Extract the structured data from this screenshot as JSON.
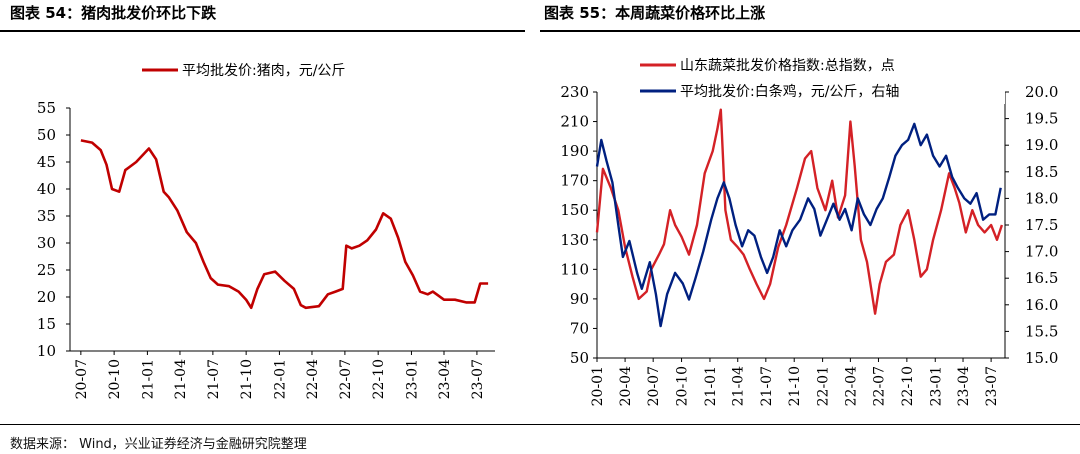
{
  "panels": [
    {
      "title": "图表 54：猪肉批发价环比下跌"
    },
    {
      "title": "图表 55：本周蔬菜价格环比上涨"
    }
  ],
  "source": "数据来源：  Wind，兴业证券经济与金融研究院整理",
  "colors": {
    "red": "#d42126",
    "darkred": "#c00000",
    "navy": "#002080"
  },
  "chart_data": [
    {
      "type": "line",
      "title": "图表 54：猪肉批发价环比下跌",
      "ylim": [
        10,
        55
      ],
      "yticks": [
        "10",
        "15",
        "20",
        "25",
        "30",
        "35",
        "40",
        "45",
        "50",
        "55"
      ],
      "xticks": [
        "20-07",
        "20-10",
        "21-01",
        "21-04",
        "21-07",
        "21-10",
        "22-01",
        "22-04",
        "22-07",
        "22-10",
        "23-01",
        "23-04",
        "23-07"
      ],
      "legend_position": "top-center",
      "series": [
        {
          "name": "平均批发价:猪肉，元/公斤",
          "color": "#c00000",
          "points": [
            [
              "2020-07-01",
              49.0
            ],
            [
              "2020-08-01",
              48.6
            ],
            [
              "2020-08-25",
              47.2
            ],
            [
              "2020-09-10",
              44.5
            ],
            [
              "2020-09-25",
              40.0
            ],
            [
              "2020-10-15",
              39.5
            ],
            [
              "2020-11-01",
              43.5
            ],
            [
              "2020-12-01",
              45.0
            ],
            [
              "2021-01-05",
              47.5
            ],
            [
              "2021-01-25",
              45.5
            ],
            [
              "2021-02-15",
              39.5
            ],
            [
              "2021-03-01",
              38.5
            ],
            [
              "2021-03-25",
              36.0
            ],
            [
              "2021-04-20",
              32.0
            ],
            [
              "2021-05-15",
              30.0
            ],
            [
              "2021-06-05",
              26.5
            ],
            [
              "2021-06-25",
              23.5
            ],
            [
              "2021-07-15",
              22.3
            ],
            [
              "2021-08-15",
              22.0
            ],
            [
              "2021-09-10",
              21.0
            ],
            [
              "2021-10-01",
              19.5
            ],
            [
              "2021-10-15",
              18.0
            ],
            [
              "2021-11-01",
              21.5
            ],
            [
              "2021-11-20",
              24.2
            ],
            [
              "2021-12-20",
              24.7
            ],
            [
              "2022-01-15",
              23.0
            ],
            [
              "2022-02-10",
              21.5
            ],
            [
              "2022-03-01",
              18.5
            ],
            [
              "2022-03-15",
              18.0
            ],
            [
              "2022-04-20",
              18.3
            ],
            [
              "2022-05-15",
              20.5
            ],
            [
              "2022-06-05",
              21.0
            ],
            [
              "2022-06-25",
              21.5
            ],
            [
              "2022-07-05",
              29.5
            ],
            [
              "2022-07-20",
              29.0
            ],
            [
              "2022-08-10",
              29.5
            ],
            [
              "2022-09-01",
              30.5
            ],
            [
              "2022-09-25",
              32.5
            ],
            [
              "2022-10-15",
              35.5
            ],
            [
              "2022-11-05",
              34.5
            ],
            [
              "2022-11-25",
              31.0
            ],
            [
              "2022-12-15",
              26.5
            ],
            [
              "2023-01-05",
              24.0
            ],
            [
              "2023-01-25",
              21.0
            ],
            [
              "2023-02-15",
              20.5
            ],
            [
              "2023-03-01",
              21.0
            ],
            [
              "2023-04-01",
              19.5
            ],
            [
              "2023-05-01",
              19.5
            ],
            [
              "2023-06-01",
              19.0
            ],
            [
              "2023-06-25",
              19.0
            ],
            [
              "2023-07-10",
              22.5
            ],
            [
              "2023-08-01",
              22.5
            ]
          ]
        }
      ]
    },
    {
      "type": "line",
      "title": "图表 55：本周蔬菜价格环比上涨",
      "ylim_left": [
        50,
        230
      ],
      "ylim_right": [
        15.0,
        20.0
      ],
      "yticks_left": [
        "50",
        "70",
        "90",
        "110",
        "130",
        "150",
        "170",
        "190",
        "210",
        "230"
      ],
      "yticks_right": [
        "15.0",
        "15.5",
        "16.0",
        "16.5",
        "17.0",
        "17.5",
        "18.0",
        "18.5",
        "19.0",
        "19.5",
        "20.0"
      ],
      "xticks": [
        "20-01",
        "20-04",
        "20-07",
        "20-10",
        "21-01",
        "21-04",
        "21-07",
        "21-10",
        "22-01",
        "22-04",
        "22-07",
        "22-10",
        "23-01",
        "23-04",
        "23-07"
      ],
      "legend_position": "top-right",
      "series": [
        {
          "name": "山东蔬菜批发价格指数:总指数，点",
          "axis": "left",
          "color": "#d42126",
          "points": [
            [
              "2020-01-01",
              135
            ],
            [
              "2020-01-20",
              178
            ],
            [
              "2020-02-15",
              165
            ],
            [
              "2020-03-10",
              150
            ],
            [
              "2020-04-01",
              125
            ],
            [
              "2020-04-25",
              105
            ],
            [
              "2020-05-15",
              90
            ],
            [
              "2020-06-10",
              95
            ],
            [
              "2020-06-25",
              110
            ],
            [
              "2020-07-20",
              120
            ],
            [
              "2020-08-05",
              127
            ],
            [
              "2020-08-25",
              150
            ],
            [
              "2020-09-10",
              140
            ],
            [
              "2020-10-01",
              132
            ],
            [
              "2020-10-25",
              120
            ],
            [
              "2020-11-20",
              140
            ],
            [
              "2020-12-15",
              175
            ],
            [
              "2021-01-10",
              190
            ],
            [
              "2021-01-25",
              205
            ],
            [
              "2021-02-05",
              218
            ],
            [
              "2021-02-20",
              150
            ],
            [
              "2021-03-10",
              130
            ],
            [
              "2021-04-01",
              125
            ],
            [
              "2021-04-20",
              120
            ],
            [
              "2021-05-10",
              110
            ],
            [
              "2021-06-01",
              100
            ],
            [
              "2021-06-25",
              90
            ],
            [
              "2021-07-15",
              100
            ],
            [
              "2021-08-10",
              125
            ],
            [
              "2021-09-05",
              140
            ],
            [
              "2021-10-10",
              165
            ],
            [
              "2021-11-05",
              185
            ],
            [
              "2021-11-25",
              190
            ],
            [
              "2021-12-15",
              165
            ],
            [
              "2022-01-10",
              150
            ],
            [
              "2022-02-01",
              170
            ],
            [
              "2022-02-20",
              145
            ],
            [
              "2022-03-15",
              160
            ],
            [
              "2022-04-01",
              210
            ],
            [
              "2022-04-15",
              180
            ],
            [
              "2022-05-05",
              130
            ],
            [
              "2022-05-25",
              115
            ],
            [
              "2022-06-20",
              80
            ],
            [
              "2022-07-05",
              100
            ],
            [
              "2022-07-25",
              115
            ],
            [
              "2022-08-20",
              120
            ],
            [
              "2022-09-10",
              140
            ],
            [
              "2022-10-05",
              150
            ],
            [
              "2022-10-25",
              130
            ],
            [
              "2022-11-15",
              105
            ],
            [
              "2022-12-05",
              110
            ],
            [
              "2022-12-25",
              130
            ],
            [
              "2023-01-20",
              150
            ],
            [
              "2023-02-15",
              175
            ],
            [
              "2023-03-05",
              165
            ],
            [
              "2023-03-20",
              155
            ],
            [
              "2023-04-10",
              135
            ],
            [
              "2023-05-01",
              150
            ],
            [
              "2023-05-20",
              140
            ],
            [
              "2023-06-10",
              135
            ],
            [
              "2023-07-01",
              140
            ],
            [
              "2023-07-20",
              130
            ],
            [
              "2023-08-05",
              140
            ]
          ]
        },
        {
          "name": "平均批发价:白条鸡，元/公斤，右轴",
          "axis": "right",
          "color": "#002080",
          "points": [
            [
              "2020-01-01",
              18.6
            ],
            [
              "2020-01-15",
              19.1
            ],
            [
              "2020-02-01",
              18.7
            ],
            [
              "2020-02-20",
              18.3
            ],
            [
              "2020-03-10",
              17.5
            ],
            [
              "2020-03-25",
              16.9
            ],
            [
              "2020-04-15",
              17.2
            ],
            [
              "2020-05-10",
              16.6
            ],
            [
              "2020-05-25",
              16.3
            ],
            [
              "2020-06-20",
              16.8
            ],
            [
              "2020-07-10",
              16.2
            ],
            [
              "2020-07-25",
              15.6
            ],
            [
              "2020-08-15",
              16.2
            ],
            [
              "2020-09-10",
              16.6
            ],
            [
              "2020-10-05",
              16.4
            ],
            [
              "2020-10-25",
              16.1
            ],
            [
              "2020-11-15",
              16.5
            ],
            [
              "2020-12-10",
              17.0
            ],
            [
              "2021-01-05",
              17.6
            ],
            [
              "2021-01-25",
              18.0
            ],
            [
              "2021-02-15",
              18.3
            ],
            [
              "2021-03-05",
              18.0
            ],
            [
              "2021-03-25",
              17.5
            ],
            [
              "2021-04-15",
              17.1
            ],
            [
              "2021-05-05",
              17.4
            ],
            [
              "2021-05-25",
              17.3
            ],
            [
              "2021-06-15",
              16.9
            ],
            [
              "2021-07-05",
              16.6
            ],
            [
              "2021-07-25",
              16.9
            ],
            [
              "2021-08-15",
              17.4
            ],
            [
              "2021-09-05",
              17.1
            ],
            [
              "2021-09-25",
              17.4
            ],
            [
              "2021-10-20",
              17.6
            ],
            [
              "2021-11-15",
              18.0
            ],
            [
              "2021-12-05",
              17.8
            ],
            [
              "2021-12-25",
              17.3
            ],
            [
              "2022-01-15",
              17.6
            ],
            [
              "2022-02-05",
              17.9
            ],
            [
              "2022-02-25",
              17.6
            ],
            [
              "2022-03-15",
              17.8
            ],
            [
              "2022-04-05",
              17.4
            ],
            [
              "2022-04-25",
              18.0
            ],
            [
              "2022-05-15",
              17.7
            ],
            [
              "2022-06-05",
              17.5
            ],
            [
              "2022-06-25",
              17.8
            ],
            [
              "2022-07-15",
              18.0
            ],
            [
              "2022-08-05",
              18.4
            ],
            [
              "2022-08-25",
              18.8
            ],
            [
              "2022-09-15",
              19.0
            ],
            [
              "2022-10-05",
              19.1
            ],
            [
              "2022-10-25",
              19.4
            ],
            [
              "2022-11-15",
              19.0
            ],
            [
              "2022-12-05",
              19.2
            ],
            [
              "2022-12-25",
              18.8
            ],
            [
              "2023-01-15",
              18.6
            ],
            [
              "2023-02-05",
              18.8
            ],
            [
              "2023-02-25",
              18.4
            ],
            [
              "2023-03-15",
              18.2
            ],
            [
              "2023-04-05",
              18.0
            ],
            [
              "2023-04-25",
              17.9
            ],
            [
              "2023-05-15",
              18.1
            ],
            [
              "2023-06-05",
              17.6
            ],
            [
              "2023-06-25",
              17.7
            ],
            [
              "2023-07-15",
              17.7
            ],
            [
              "2023-08-01",
              18.2
            ]
          ]
        }
      ]
    }
  ]
}
